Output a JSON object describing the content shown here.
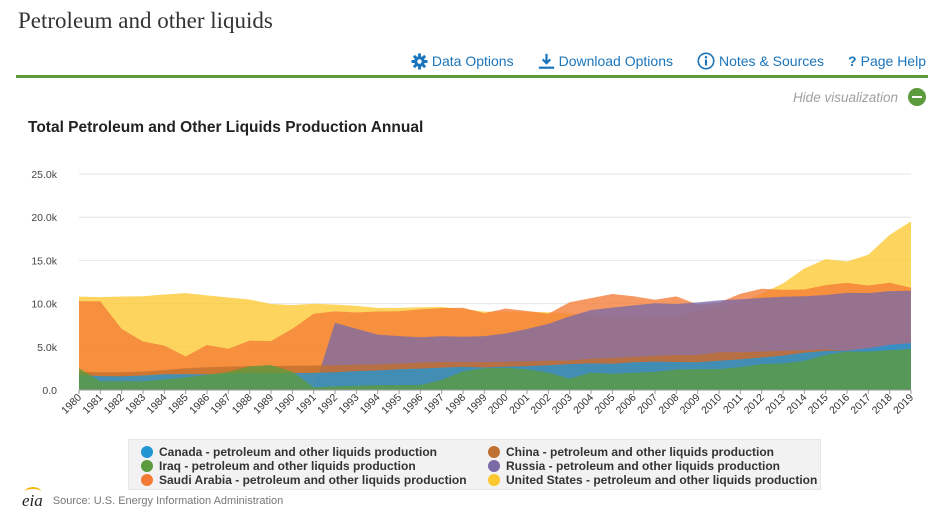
{
  "page": {
    "title": "Petroleum and other liquids",
    "toolbar": {
      "data_options": "Data Options",
      "download_options": "Download Options",
      "notes_sources": "Notes & Sources",
      "page_help": "Page Help"
    },
    "hide_visualization": "Hide visualization",
    "source": "Source: U.S. Energy Information Administration",
    "logo_text": "eia",
    "accent_color": "#5c9b3d",
    "link_color": "#1b75bb"
  },
  "chart_data": {
    "type": "area",
    "title": "Total Petroleum and Other Liquids Production Annual",
    "xlabel": "",
    "ylabel": "",
    "ylim": [
      0,
      25000
    ],
    "yticks": [
      0,
      5000,
      10000,
      15000,
      20000,
      25000
    ],
    "ytick_labels": [
      "0.0",
      "5.0k",
      "10.0k",
      "15.0k",
      "20.0k",
      "25.0k"
    ],
    "grid": true,
    "legend_position": "bottom",
    "x": [
      "1980",
      "1981",
      "1982",
      "1983",
      "1984",
      "1985",
      "1986",
      "1987",
      "1988",
      "1989",
      "1990",
      "1991",
      "1992",
      "1993",
      "1994",
      "1995",
      "1996",
      "1997",
      "1998",
      "1999",
      "2000",
      "2001",
      "2002",
      "2003",
      "2004",
      "2005",
      "2006",
      "2007",
      "2008",
      "2009",
      "2010",
      "2011",
      "2012",
      "2013",
      "2014",
      "2015",
      "2016",
      "2017",
      "2018",
      "2019"
    ],
    "series": [
      {
        "name": "Canada - petroleum and other liquids production",
        "color": "#2196d3",
        "values": [
          1760,
          1610,
          1590,
          1680,
          1830,
          1840,
          1810,
          1910,
          2000,
          1960,
          1970,
          1980,
          2060,
          2180,
          2270,
          2400,
          2480,
          2590,
          2670,
          2600,
          2700,
          2760,
          2860,
          3000,
          3080,
          3040,
          3210,
          3290,
          3240,
          3210,
          3380,
          3540,
          3760,
          4000,
          4320,
          4530,
          4560,
          4830,
          5240,
          5420
        ]
      },
      {
        "name": "China - petroleum and other liquids production",
        "color": "#c07030",
        "values": [
          2130,
          2040,
          2050,
          2130,
          2300,
          2520,
          2640,
          2700,
          2760,
          2770,
          2800,
          2830,
          2870,
          2920,
          2960,
          3050,
          3180,
          3240,
          3220,
          3220,
          3260,
          3310,
          3390,
          3410,
          3610,
          3700,
          3830,
          3960,
          4040,
          4060,
          4370,
          4380,
          4460,
          4530,
          4590,
          4720,
          4560,
          4410,
          4430,
          4490
        ]
      },
      {
        "name": "Iraq - petroleum and other liquids production",
        "color": "#5c9b3d",
        "values": [
          2520,
          1000,
          1010,
          1000,
          1210,
          1440,
          1750,
          2110,
          2740,
          2900,
          2140,
          300,
          430,
          490,
          560,
          560,
          580,
          1160,
          2150,
          2520,
          2570,
          2390,
          2010,
          1310,
          2010,
          1880,
          1990,
          2100,
          2380,
          2400,
          2410,
          2650,
          2990,
          3070,
          3370,
          4050,
          4440,
          4450,
          4620,
          4740
        ]
      },
      {
        "name": "Russia - petroleum and other liquids production",
        "color": "#7b6aa6",
        "values": [
          0,
          0,
          0,
          0,
          0,
          0,
          0,
          0,
          0,
          0,
          0,
          0,
          7780,
          7090,
          6410,
          6240,
          6110,
          6220,
          6170,
          6240,
          6540,
          7060,
          7660,
          8520,
          9240,
          9540,
          9800,
          10040,
          9950,
          10140,
          10370,
          10510,
          10660,
          10800,
          10850,
          11000,
          11240,
          11210,
          11440,
          11490
        ]
      },
      {
        "name": "Saudi Arabia - petroleum and other liquids production",
        "color": "#f47b36",
        "values": [
          10270,
          10260,
          7060,
          5620,
          5140,
          3880,
          5210,
          4760,
          5720,
          5650,
          7070,
          8820,
          9100,
          8970,
          9080,
          9110,
          9330,
          9480,
          9520,
          8890,
          9440,
          9140,
          8830,
          10150,
          10640,
          11110,
          10850,
          10450,
          10840,
          9890,
          10110,
          11140,
          11720,
          11590,
          11630,
          12140,
          12400,
          12090,
          12420,
          11830
        ]
      },
      {
        "name": "United States - petroleum and other liquids production",
        "color": "#fdc82f",
        "values": [
          10810,
          10750,
          10820,
          10850,
          11050,
          11210,
          10950,
          10700,
          10480,
          9950,
          9820,
          9980,
          9880,
          9730,
          9500,
          9500,
          9580,
          9600,
          9370,
          9070,
          9060,
          9080,
          9000,
          8860,
          8740,
          8330,
          8340,
          8490,
          8560,
          9140,
          9690,
          10130,
          11140,
          12340,
          14060,
          15150,
          14870,
          15650,
          17950,
          19510
        ]
      }
    ]
  }
}
